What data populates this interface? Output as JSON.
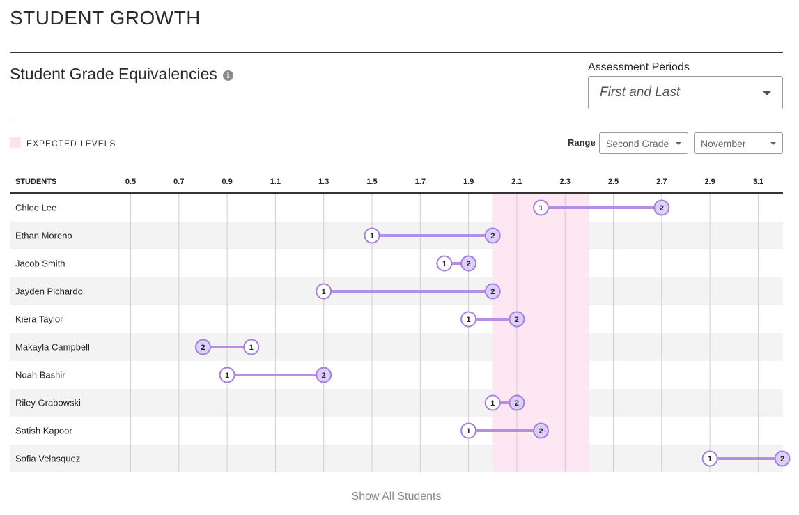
{
  "page_title": "STUDENT GROWTH",
  "section_title": "Student Grade Equivalencies",
  "info_icon_glyph": "i",
  "assessment_periods": {
    "label": "Assessment Periods",
    "selected": "First and Last"
  },
  "legend": {
    "label": "EXPECTED LEVELS",
    "color": "#fde3f1"
  },
  "range": {
    "label": "Range",
    "grade_selected": "Second Grade",
    "month_selected": "November"
  },
  "table_header": "STUDENTS",
  "show_all_label": "Show All Students",
  "colors": {
    "accent": "#b48fe5",
    "marker_fill": "#dccffa",
    "marker_stroke": "#a57ee0",
    "row_alt": "#f3f3f3",
    "grid": "#cfcfcf"
  },
  "chart_data": {
    "type": "scatter",
    "x_ticks": [
      "0.5",
      "0.7",
      "0.9",
      "1.1",
      "1.3",
      "1.5",
      "1.7",
      "1.9",
      "2.1",
      "2.3",
      "2.5",
      "2.7",
      "2.9",
      "3.1"
    ],
    "xlim": [
      0.5,
      3.1
    ],
    "expected_range": [
      2.0,
      2.4
    ],
    "students": [
      {
        "name": "Chloe Lee",
        "p1": 2.2,
        "p2": 2.7
      },
      {
        "name": "Ethan Moreno",
        "p1": 1.5,
        "p2": 2.0
      },
      {
        "name": "Jacob Smith",
        "p1": 1.8,
        "p2": 1.9
      },
      {
        "name": "Jayden Pichardo",
        "p1": 1.3,
        "p2": 2.0
      },
      {
        "name": "Kiera Taylor",
        "p1": 1.9,
        "p2": 2.1
      },
      {
        "name": "Makayla Campbell",
        "p1": 1.0,
        "p2": 0.8
      },
      {
        "name": "Noah Bashir",
        "p1": 0.9,
        "p2": 1.3
      },
      {
        "name": "Riley Grabowski",
        "p1": 2.0,
        "p2": 2.1
      },
      {
        "name": "Satish Kapoor",
        "p1": 1.9,
        "p2": 2.2
      },
      {
        "name": "Sofia Velasquez",
        "p1": 2.9,
        "p2": 3.2
      }
    ],
    "marker_labels": [
      "1",
      "2"
    ]
  }
}
